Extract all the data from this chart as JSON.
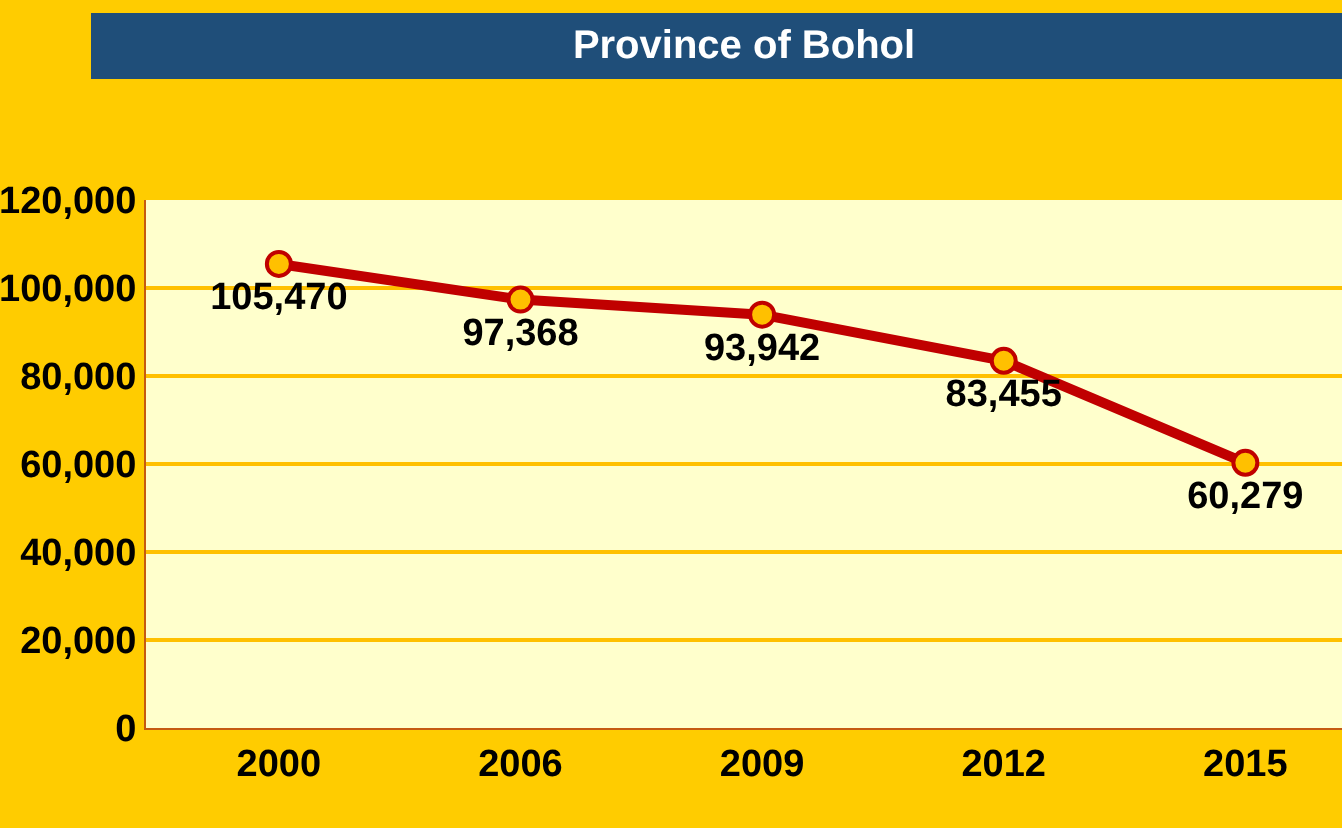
{
  "chart_data": {
    "type": "line",
    "title": "Province of Bohol",
    "categories": [
      "2000",
      "2006",
      "2009",
      "2012",
      "2015"
    ],
    "series": [
      {
        "color": "#c00000",
        "values": [
          105470,
          97368,
          93942,
          83455,
          60279
        ],
        "value_labels": [
          "105,470",
          "97,368",
          "93,942",
          "83,455",
          "60,279"
        ]
      }
    ],
    "ylim": [
      0,
      120000
    ],
    "yticks": [
      {
        "value": 0,
        "label": "0"
      },
      {
        "value": 20000,
        "label": "20,000"
      },
      {
        "value": 40000,
        "label": "40,000"
      },
      {
        "value": 60000,
        "label": "60,000"
      },
      {
        "value": 80000,
        "label": "80,000"
      },
      {
        "value": 100000,
        "label": "100,000"
      },
      {
        "value": 120000,
        "label": "120,000"
      }
    ],
    "grid": "y",
    "marker": "circle",
    "line_style": "solid",
    "legend": false
  }
}
